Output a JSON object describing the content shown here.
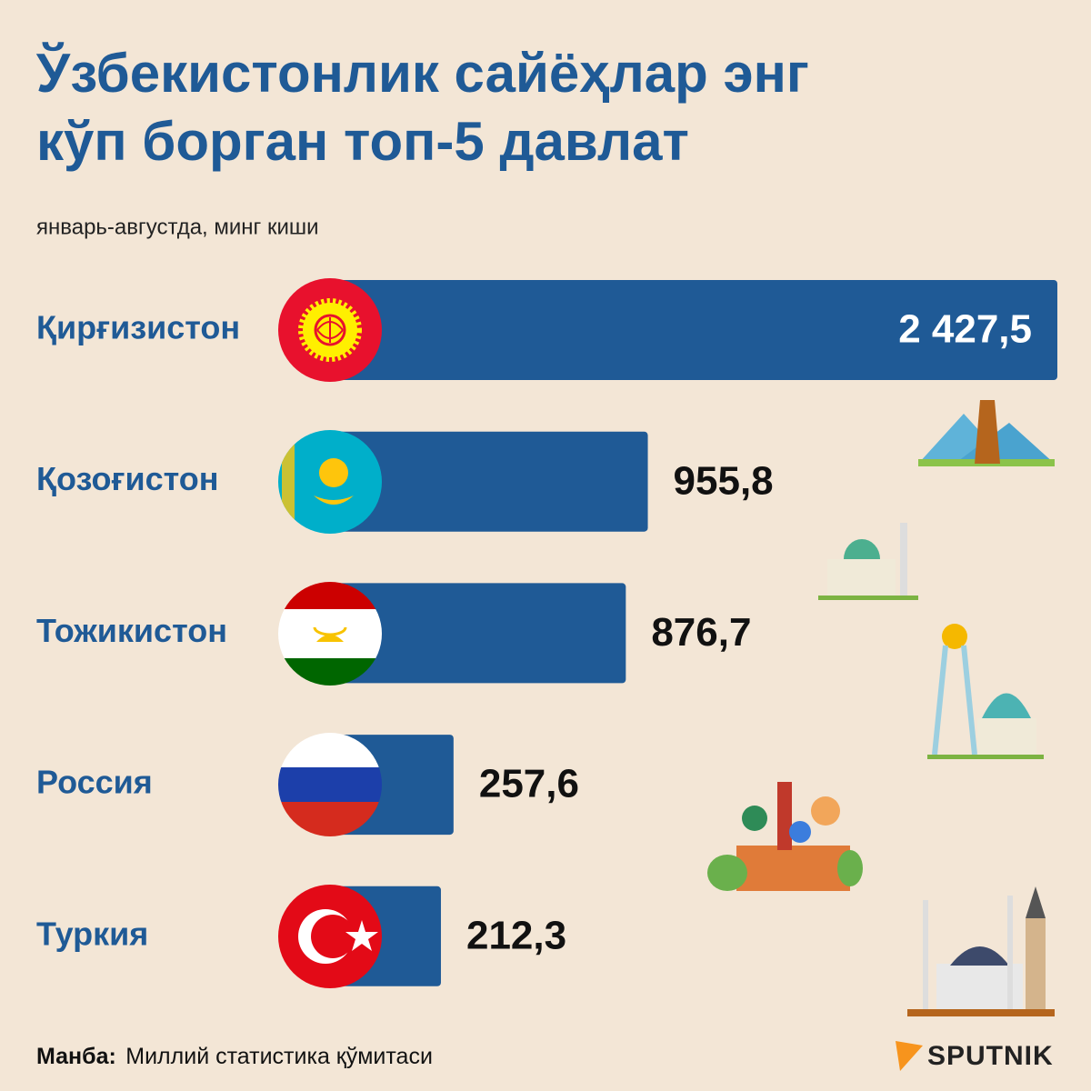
{
  "chart_data": {
    "type": "bar",
    "orientation": "horizontal",
    "title": [
      "Ўзбекистонлик сайёҳлар энг",
      "кўп борган топ-5 давлат"
    ],
    "subtitle": "январь-августда, минг киши",
    "categories": [
      "Қирғизистон",
      "Қозоғистон",
      "Тожикистон",
      "Россия",
      "Туркия"
    ],
    "values": [
      2427.5,
      955.8,
      876.7,
      257.6,
      212.3
    ],
    "value_labels": [
      "2 427,5",
      "955,8",
      "876,7",
      "257,6",
      "212,3"
    ],
    "color": "#1f5a96",
    "source_label": "Манба:",
    "source": "Миллий статистика қўмитаси",
    "brand": "SPUTNIK"
  }
}
